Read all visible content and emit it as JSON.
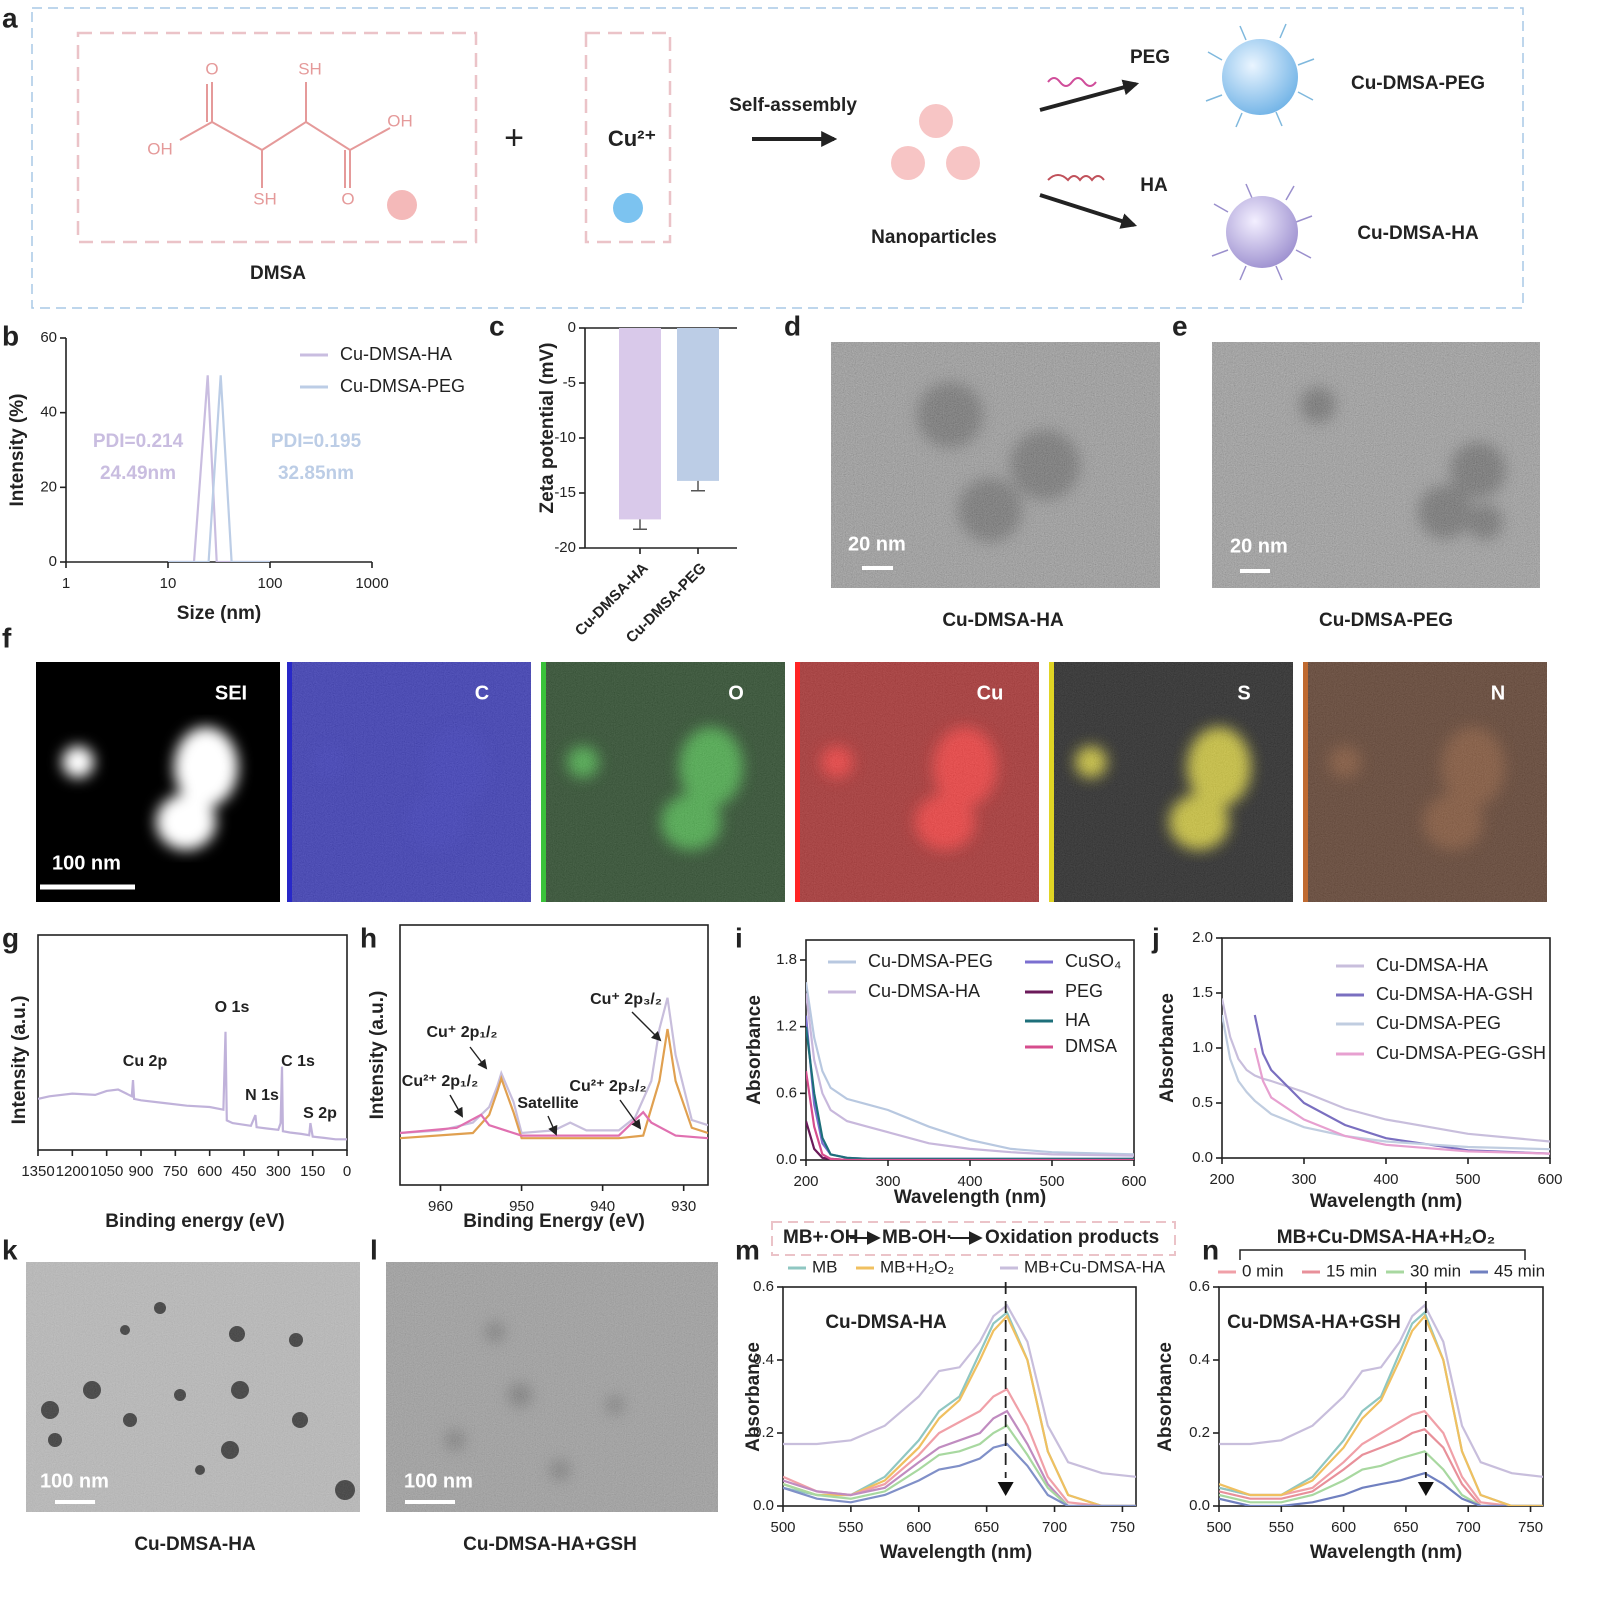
{
  "figure": {
    "panel_labels": [
      "a",
      "b",
      "c",
      "d",
      "e",
      "f",
      "g",
      "h",
      "i",
      "j",
      "k",
      "l",
      "m",
      "n"
    ],
    "schematic": {
      "dmsa_atoms": [
        "O",
        "SH",
        "OH",
        "OH",
        "SH",
        "O"
      ],
      "dmsa": "DMSA",
      "plus": "+",
      "copper": "Cu²⁺",
      "self_assembly": "Self-assembly",
      "nanoparticles": "Nanoparticles",
      "peg": "PEG",
      "ha": "HA",
      "product_peg": "Cu-DMSA-PEG",
      "product_ha": "Cu-DMSA-HA"
    },
    "tem": [
      {
        "scale": "20 nm",
        "caption": "Cu-DMSA-HA"
      },
      {
        "scale": "20 nm",
        "caption": "Cu-DMSA-PEG"
      }
    ],
    "mapping": {
      "scale": "100 nm",
      "channels": [
        "SEI",
        "C",
        "O",
        "Cu",
        "S",
        "N"
      ]
    },
    "tem_gsh": [
      {
        "scale": "100 nm",
        "caption": "Cu-DMSA-HA"
      },
      {
        "scale": "100 nm",
        "caption": "Cu-DMSA-HA+GSH"
      }
    ]
  },
  "chart_data": [
    {
      "type": "line",
      "xlog": true,
      "xlim": [
        1,
        1000
      ],
      "xticks": [
        1,
        10,
        100,
        1000
      ],
      "ylim": [
        0,
        60
      ],
      "yticks": [
        0,
        20,
        40,
        60
      ],
      "xlabel": "Size (nm)",
      "ylabel": "Intensity (%)",
      "series": [
        {
          "name": "Cu-DMSA-HA",
          "color": "#c9bde0",
          "x": [
            10,
            18,
            24.49,
            30,
            100
          ],
          "values": [
            0,
            0,
            50,
            0,
            0
          ]
        },
        {
          "name": "Cu-DMSA-PEG",
          "color": "#bccde6",
          "x": [
            10,
            25,
            32.85,
            42,
            100
          ],
          "values": [
            0,
            0,
            50,
            0,
            0
          ]
        }
      ],
      "annotations": [
        "PDI=0.214",
        "24.49nm",
        "PDI=0.195",
        "32.85nm"
      ]
    },
    {
      "type": "bar",
      "categories": [
        "Cu-DMSA-HA",
        "Cu-DMSA-PEG"
      ],
      "values": [
        -17.4,
        -13.9
      ],
      "errors": [
        0.9,
        0.9
      ],
      "colors": [
        "#d9c9ea",
        "#bccde6"
      ],
      "ylim": [
        -20,
        0
      ],
      "yticks": [
        0,
        -5,
        -10,
        -15,
        -20
      ],
      "ylabel": "Zeta potential (mV)"
    },
    {
      "type": "line",
      "xlim": [
        1350,
        0
      ],
      "xticks": [
        1350,
        1200,
        1050,
        900,
        750,
        600,
        450,
        300,
        150,
        0
      ],
      "ylim": [
        0,
        160
      ],
      "xlabel": "Binding energy (eV)",
      "ylabel": "Intensity (a.u.)",
      "x": [
        1350,
        1300,
        1200,
        1100,
        1050,
        1000,
        940,
        935,
        930,
        900,
        800,
        700,
        600,
        540,
        531,
        525,
        500,
        420,
        400,
        395,
        350,
        300,
        290,
        284,
        280,
        250,
        200,
        165,
        160,
        150,
        100,
        50,
        0
      ],
      "series": [
        {
          "color": "#c0b2da",
          "values": [
            38,
            40,
            42,
            41,
            44,
            45,
            40,
            52,
            38,
            37,
            35,
            33,
            32,
            30,
            88,
            22,
            20,
            18,
            26,
            17,
            16,
            15,
            20,
            62,
            14,
            13,
            12,
            11,
            20,
            10,
            9,
            8,
            8
          ]
        }
      ],
      "annotations": [
        "Cu 2p",
        "O 1s",
        "N 1s",
        "C 1s",
        "S 2p"
      ]
    },
    {
      "type": "line",
      "xlim": [
        965,
        927
      ],
      "xticks": [
        960,
        950,
        940,
        930
      ],
      "ylim": [
        0,
        100
      ],
      "xlabel": "Binding Energy (eV)",
      "ylabel": "Intensity (a.u.)",
      "series": [
        {
          "color": "#c8bedc",
          "x": [
            965,
            960,
            956,
            954,
            953,
            952.5,
            951,
            950,
            946,
            944,
            942,
            938,
            936,
            934,
            933,
            932,
            931,
            929,
            927
          ],
          "values": [
            20,
            21,
            24,
            30,
            38,
            43,
            32,
            20,
            21,
            24,
            21,
            21,
            26,
            40,
            60,
            72,
            50,
            25,
            23
          ]
        },
        {
          "color": "#e0a050",
          "x": [
            965,
            956,
            954,
            953,
            952.5,
            951,
            950,
            938,
            935,
            933,
            932,
            931,
            929,
            927
          ],
          "values": [
            18,
            20,
            27,
            36,
            41,
            28,
            18,
            18,
            19,
            40,
            60,
            40,
            22,
            20
          ]
        },
        {
          "color": "#e070b0",
          "x": [
            965,
            958,
            955,
            954,
            950,
            938,
            935,
            934,
            931,
            927
          ],
          "values": [
            20,
            22,
            27,
            23,
            19,
            19,
            28,
            24,
            19,
            18
          ]
        }
      ],
      "annotations": [
        "Cu⁺ 2p₁/₂",
        "Cu²⁺ 2p₁/₂",
        "Satellite",
        "Cu²⁺ 2p₃/₂",
        "Cu⁺ 2p₃/₂"
      ]
    },
    {
      "type": "line",
      "xlim": [
        200,
        600
      ],
      "xticks": [
        200,
        300,
        400,
        500,
        600
      ],
      "ylim": [
        0,
        1.98
      ],
      "yticks": [
        {
          "value": 0,
          "label": "0.0"
        },
        0.6,
        1.2,
        1.8
      ],
      "xlabel": "Wavelength (nm)",
      "ylabel": "Absorbance",
      "x": [
        200,
        210,
        220,
        230,
        250,
        275,
        300,
        350,
        400,
        450,
        500,
        600
      ],
      "series": [
        {
          "name": "Cu-DMSA-PEG",
          "color": "#b8c8e0",
          "values": [
            1.6,
            1.1,
            0.8,
            0.65,
            0.55,
            0.5,
            0.45,
            0.3,
            0.18,
            0.1,
            0.07,
            0.05
          ]
        },
        {
          "name": "Cu-DMSA-HA",
          "color": "#c8b8dc",
          "values": [
            1.5,
            0.9,
            0.6,
            0.45,
            0.35,
            0.3,
            0.25,
            0.15,
            0.1,
            0.07,
            0.05,
            0.04
          ]
        },
        {
          "name": "CuSO₄",
          "color": "#7b6fd0",
          "values": [
            1.3,
            0.5,
            0.15,
            0.05,
            0.02,
            0.01,
            0.01,
            0.01,
            0.01,
            0.01,
            0.01,
            0.01
          ]
        },
        {
          "name": "PEG",
          "color": "#6b1a5a",
          "values": [
            0.35,
            0.1,
            0.02,
            0.01,
            0,
            0,
            0,
            0,
            0,
            0,
            0,
            0
          ]
        },
        {
          "name": "HA",
          "color": "#1d6f7a",
          "values": [
            1.2,
            0.6,
            0.2,
            0.05,
            0.02,
            0.01,
            0.01,
            0.01,
            0.01,
            0.01,
            0.01,
            0.01
          ]
        },
        {
          "name": "DMSA",
          "color": "#d64d8d",
          "values": [
            0.8,
            0.3,
            0.05,
            0.01,
            0,
            0,
            0,
            0,
            0,
            0,
            0,
            0
          ]
        }
      ]
    },
    {
      "type": "line",
      "xlim": [
        200,
        600
      ],
      "xticks": [
        200,
        300,
        400,
        500,
        600
      ],
      "ylim": [
        0,
        2
      ],
      "yticks": [
        {
          "value": 0,
          "label": "0.0"
        },
        0.5,
        {
          "value": 1,
          "label": "1.0"
        },
        1.5,
        {
          "value": 2,
          "label": "2.0"
        }
      ],
      "xlabel": "Wavelength (nm)",
      "ylabel": "Absorbance",
      "x": [
        200,
        210,
        220,
        230,
        240,
        250,
        260,
        300,
        350,
        400,
        500,
        600
      ],
      "series": [
        {
          "name": "Cu-DMSA-HA",
          "color": "#c8bedc",
          "values": [
            1.45,
            1.1,
            0.9,
            0.8,
            0.75,
            0.72,
            0.7,
            0.6,
            0.45,
            0.35,
            0.22,
            0.15
          ]
        },
        {
          "name": "Cu-DMSA-HA-GSH",
          "color": "#7a6fc0",
          "values": [
            null,
            null,
            null,
            null,
            1.3,
            0.95,
            0.8,
            0.5,
            0.3,
            0.18,
            0.07,
            0.04
          ]
        },
        {
          "name": "Cu-DMSA-PEG",
          "color": "#c0cde0",
          "values": [
            1.3,
            0.9,
            0.7,
            0.6,
            0.52,
            0.46,
            0.4,
            0.28,
            0.2,
            0.15,
            0.1,
            0.08
          ]
        },
        {
          "name": "Cu-DMSA-PEG-GSH",
          "color": "#e7a0d0",
          "values": [
            null,
            null,
            null,
            null,
            1.0,
            0.7,
            0.55,
            0.35,
            0.2,
            0.12,
            0.06,
            0.04
          ]
        }
      ]
    },
    {
      "type": "line",
      "xlim": [
        500,
        760
      ],
      "xticks": [
        500,
        550,
        600,
        650,
        700,
        750
      ],
      "ylim": [
        0,
        0.6
      ],
      "yticks": [
        {
          "value": 0,
          "label": "0.0"
        },
        0.2,
        0.4,
        0.6
      ],
      "xlabel": "Wavelength (nm)",
      "ylabel": "Absorbance",
      "reference_x": 664,
      "x": [
        500,
        525,
        550,
        575,
        600,
        615,
        630,
        645,
        655,
        665,
        680,
        695,
        710,
        735,
        760
      ],
      "series": [
        {
          "name": "MB",
          "color": "#8fc7c2",
          "values": [
            0.05,
            0.03,
            0.03,
            0.08,
            0.18,
            0.26,
            0.3,
            0.42,
            0.5,
            0.53,
            0.4,
            0.15,
            0.03,
            0,
            0
          ]
        },
        {
          "name": "MB+H₂O₂",
          "color": "#f0c060",
          "values": [
            0.06,
            0.03,
            0.03,
            0.07,
            0.16,
            0.24,
            0.29,
            0.4,
            0.48,
            0.52,
            0.4,
            0.15,
            0.03,
            0,
            0
          ]
        },
        {
          "name": "MB+Cu-DMSA-HA",
          "color": "#c8bedc",
          "values": [
            0.17,
            0.17,
            0.18,
            0.22,
            0.3,
            0.37,
            0.38,
            0.45,
            0.52,
            0.55,
            0.45,
            0.22,
            0.12,
            0.09,
            0.08
          ]
        },
        {
          "color": "#f0a0a8",
          "values": [
            0.08,
            0.04,
            0.03,
            0.06,
            0.14,
            0.2,
            0.23,
            0.26,
            0.3,
            0.32,
            0.22,
            0.08,
            0.01,
            0,
            0
          ]
        },
        {
          "color": "#c08cc0",
          "values": [
            0.07,
            0.04,
            0.03,
            0.05,
            0.12,
            0.16,
            0.18,
            0.2,
            0.24,
            0.26,
            0.17,
            0.06,
            0,
            0,
            0
          ]
        },
        {
          "color": "#a8d8a0",
          "values": [
            0.06,
            0.03,
            0.02,
            0.04,
            0.1,
            0.14,
            0.15,
            0.17,
            0.2,
            0.22,
            0.14,
            0.05,
            0,
            0,
            0
          ]
        },
        {
          "color": "#8090c8",
          "values": [
            0.05,
            0.02,
            0.01,
            0.03,
            0.07,
            0.1,
            0.11,
            0.13,
            0.16,
            0.17,
            0.11,
            0.03,
            0,
            0,
            0
          ]
        }
      ],
      "annotations": [
        "MB+·OH",
        "MB-OH·",
        "Oxidation products",
        "Cu-DMSA-HA"
      ]
    },
    {
      "type": "line",
      "xlim": [
        500,
        760
      ],
      "xticks": [
        500,
        550,
        600,
        650,
        700,
        750
      ],
      "ylim": [
        0,
        0.6
      ],
      "yticks": [
        {
          "value": 0,
          "label": "0.0"
        },
        0.2,
        0.4,
        0.6
      ],
      "xlabel": "Wavelength (nm)",
      "ylabel": "Absorbance",
      "reference_x": 666,
      "x": [
        500,
        525,
        550,
        575,
        600,
        615,
        630,
        645,
        655,
        665,
        680,
        695,
        710,
        735,
        760
      ],
      "series": [
        {
          "name": "0 min",
          "color": "#f0a0a8",
          "values": [
            0.05,
            0.03,
            0.03,
            0.05,
            0.12,
            0.17,
            0.2,
            0.23,
            0.25,
            0.26,
            0.2,
            0.08,
            0.01,
            0,
            0
          ]
        },
        {
          "name": "15 min",
          "color": "#e8909a",
          "values": [
            0.04,
            0.02,
            0.02,
            0.04,
            0.1,
            0.14,
            0.16,
            0.18,
            0.2,
            0.21,
            0.16,
            0.06,
            0,
            0,
            0
          ]
        },
        {
          "name": "30 min",
          "color": "#a8d8a0",
          "values": [
            0.03,
            0.01,
            0.01,
            0.03,
            0.07,
            0.1,
            0.11,
            0.13,
            0.14,
            0.15,
            0.1,
            0.03,
            0,
            0,
            0
          ]
        },
        {
          "name": "45 min",
          "color": "#7080c0",
          "values": [
            0.02,
            0,
            0,
            0.01,
            0.03,
            0.05,
            0.06,
            0.07,
            0.08,
            0.09,
            0.06,
            0.02,
            0,
            0,
            0
          ]
        },
        {
          "color": "#8fc7c2",
          "values": [
            0.05,
            0.03,
            0.03,
            0.08,
            0.18,
            0.26,
            0.3,
            0.42,
            0.5,
            0.53,
            0.4,
            0.15,
            0.03,
            0,
            0
          ]
        },
        {
          "color": "#f0c060",
          "values": [
            0.06,
            0.03,
            0.03,
            0.07,
            0.16,
            0.24,
            0.29,
            0.4,
            0.48,
            0.52,
            0.4,
            0.15,
            0.03,
            0,
            0
          ]
        },
        {
          "color": "#c8bedc",
          "values": [
            0.17,
            0.17,
            0.18,
            0.22,
            0.3,
            0.37,
            0.38,
            0.45,
            0.52,
            0.55,
            0.45,
            0.22,
            0.12,
            0.09,
            0.08
          ]
        }
      ],
      "annotations": [
        "MB+Cu-DMSA-HA+H₂O₂",
        "Cu-DMSA-HA+GSH"
      ]
    }
  ]
}
